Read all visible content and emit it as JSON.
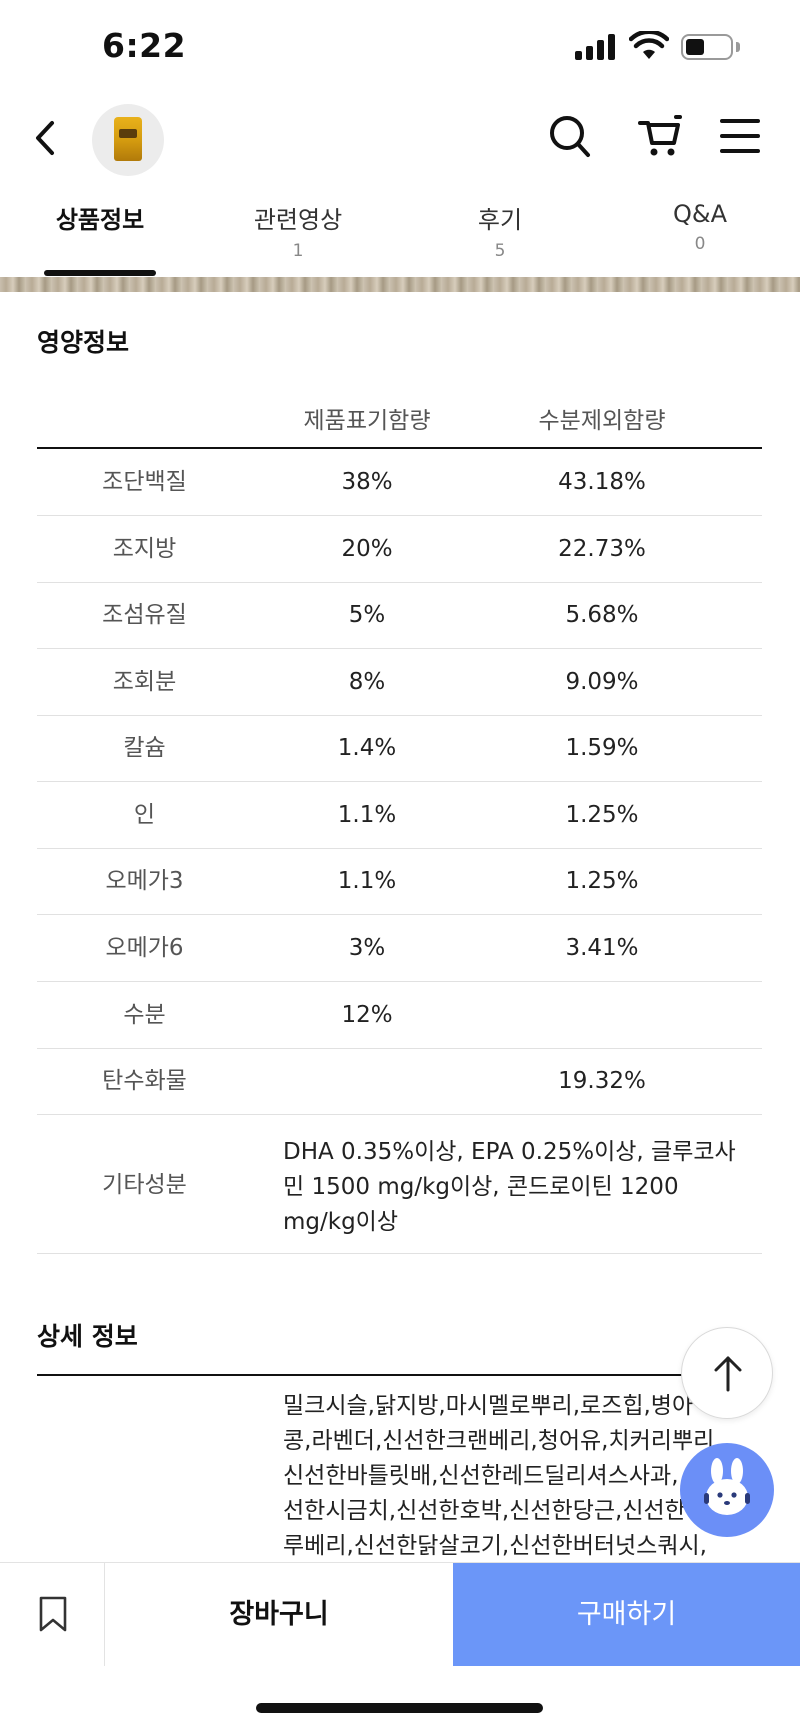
{
  "status_bar": {
    "time": "6:22"
  },
  "tabs": [
    {
      "label": "상품정보",
      "count": ""
    },
    {
      "label": "관련영상",
      "count": "1"
    },
    {
      "label": "후기",
      "count": "5"
    },
    {
      "label": "Q&A",
      "count": "0"
    }
  ],
  "nutrition": {
    "title": "영양정보",
    "columns": [
      "제품표기함량",
      "수분제외함량"
    ],
    "rows": [
      {
        "name": "조단백질",
        "label": "38%",
        "dry": "43.18%"
      },
      {
        "name": "조지방",
        "label": "20%",
        "dry": "22.73%"
      },
      {
        "name": "조섬유질",
        "label": "5%",
        "dry": "5.68%"
      },
      {
        "name": "조회분",
        "label": "8%",
        "dry": "9.09%"
      },
      {
        "name": "칼슘",
        "label": "1.4%",
        "dry": "1.59%"
      },
      {
        "name": "인",
        "label": "1.1%",
        "dry": "1.25%"
      },
      {
        "name": "오메가3",
        "label": "1.1%",
        "dry": "1.25%"
      },
      {
        "name": "오메가6",
        "label": "3%",
        "dry": "3.41%"
      },
      {
        "name": "수분",
        "label": "12%",
        "dry": ""
      },
      {
        "name": "탄수화물",
        "label": "",
        "dry": "19.32%"
      }
    ],
    "other": {
      "name": "기타성분",
      "value": "DHA 0.35%이상, EPA 0.25%이상, 글루코사민 1500 mg/kg이상, 콘드로이틴 1200 mg/kg이상"
    }
  },
  "detail": {
    "title": "상세 정보",
    "lines": [
      "밀크시슬,닭지방,마시멜로뿌리,로즈힙,병아",
      "콩,라벤더,신선한크랜베리,청어유,치커리뿌리,",
      "신선한바틀릿배,신선한레드딜리셔스사과,",
      "선한시금치,신선한호박,신선한당근,신선한",
      "루베리,신선한닭살코기,신선한버터넛스쿼시,"
    ]
  },
  "bottom_bar": {
    "cart_label": "장바구니",
    "buy_label": "구매하기"
  },
  "colors": {
    "buy_button": "#6b96f8",
    "chatbot": "#6b8ff7"
  }
}
